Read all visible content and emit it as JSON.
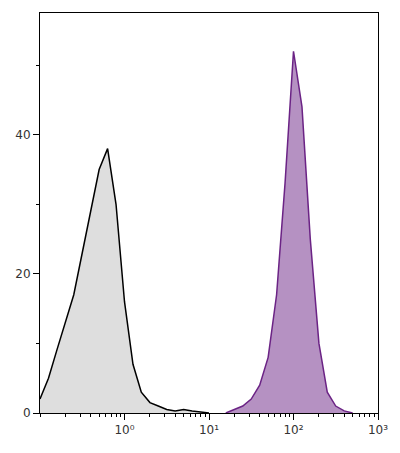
{
  "chart_data": {
    "type": "area",
    "log": "x",
    "x": [
      0.1,
      0.126,
      0.158,
      0.2,
      0.251,
      0.316,
      0.398,
      0.501,
      0.631,
      0.794,
      1,
      1.26,
      1.58,
      2,
      2.51,
      3.16,
      3.98,
      5.01,
      6.31,
      7.94,
      10,
      12.6,
      15.8,
      20,
      25.1,
      31.6,
      39.8,
      50.1,
      63.1,
      79.4,
      100,
      126,
      158,
      200,
      251,
      316,
      398,
      501,
      631,
      794,
      1000
    ],
    "series": [
      {
        "color": "#000000",
        "values": [
          2,
          5,
          9,
          13,
          17,
          23,
          29,
          35,
          38,
          30,
          16,
          7,
          3,
          1.5,
          1,
          0.5,
          0.3,
          0.5,
          0.3,
          0.2,
          0,
          null,
          null,
          null,
          null,
          null,
          null,
          null,
          null,
          null,
          null,
          null,
          null,
          null,
          null,
          null,
          null,
          null,
          null,
          null,
          null
        ]
      },
      {
        "color": "#6b2385",
        "values": [
          null,
          null,
          null,
          null,
          null,
          null,
          null,
          null,
          null,
          null,
          null,
          null,
          null,
          null,
          null,
          null,
          null,
          null,
          null,
          null,
          null,
          null,
          0,
          0.5,
          1,
          2,
          4,
          8,
          17,
          33,
          52,
          44,
          25,
          10,
          3,
          1,
          0.3,
          0,
          null,
          null,
          null
        ]
      }
    ],
    "xlim": [
      0.1,
      1000
    ],
    "xticks": [
      {
        "value": 1,
        "label": "10⁰"
      },
      {
        "value": 10,
        "label": "10¹"
      },
      {
        "value": 100,
        "label": "10²"
      },
      {
        "value": 1000,
        "label": "10³"
      }
    ],
    "ylim": [
      0,
      57.5
    ],
    "yticks": [
      0,
      20,
      40
    ],
    "grid": false,
    "tick_labels": true
  }
}
